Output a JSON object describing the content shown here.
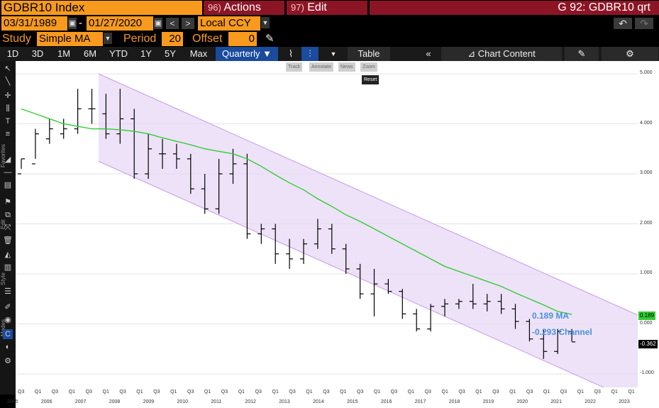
{
  "header": {
    "security": "GDBR10 Index",
    "actions_label": "Actions",
    "actions_num": "96)",
    "edit_label": "Edit",
    "edit_num": "97)",
    "title": "G 92: GDBR10 qrt"
  },
  "range": {
    "start": "03/31/1989",
    "sep": "-",
    "end": "01/27/2020",
    "currency": "Local CCY"
  },
  "study": {
    "label": "Study",
    "value": "Simple MA",
    "period_label": "Period",
    "period": "20",
    "offset_label": "Offset",
    "offset": "0"
  },
  "tabs": [
    "1D",
    "3D",
    "1M",
    "6M",
    "YTD",
    "1Y",
    "5Y",
    "Max"
  ],
  "frequency": "Quarterly ▼",
  "table_label": "Table",
  "chart_content_label": "Chart Content",
  "mini_tools": [
    "Track",
    "Annotate",
    "News",
    "Zoom"
  ],
  "reset_label": "Reset",
  "side_labels": [
    "Favorites",
    "Edit",
    "Style",
    "Modes"
  ],
  "colors": {
    "ma": "#33cc33",
    "channel_fill": "#e6d6f5",
    "channel_line": "#c79ae6",
    "annotation": "#4a90d9",
    "badge_ma": "#33cc33",
    "badge_last": "#000000"
  },
  "chart_data": {
    "type": "line",
    "ylim": [
      -1.3,
      5.1
    ],
    "y_ticks": [
      "5.000",
      "4.000",
      "3.000",
      "2.000",
      "1.000",
      "0.000",
      "-1.000"
    ],
    "x_quarters": [
      "Q3",
      "Q1",
      "Q3",
      "Q1",
      "Q3",
      "Q1",
      "Q3",
      "Q1",
      "Q3",
      "Q1",
      "Q3",
      "Q1",
      "Q3",
      "Q1",
      "Q3",
      "Q1",
      "Q3",
      "Q1",
      "Q3",
      "Q1",
      "Q3",
      "Q1",
      "Q3",
      "Q1",
      "Q3",
      "Q1",
      "Q3",
      "Q1",
      "Q3",
      "Q1",
      "Q3",
      "Q1",
      "Q3",
      "Q1",
      "Q3",
      "Q1",
      "Q1"
    ],
    "x_years": [
      "2005",
      "2006",
      "2007",
      "2008",
      "2009",
      "2010",
      "2011",
      "2012",
      "2013",
      "2014",
      "2015",
      "2016",
      "2017",
      "2018",
      "2019",
      "2020",
      "2021",
      "2022",
      "2023"
    ],
    "bars": [
      [
        3.0,
        3.3,
        3.1,
        3.3
      ],
      [
        3.2,
        3.9,
        3.3,
        3.8
      ],
      [
        3.7,
        4.1,
        3.6,
        3.9
      ],
      [
        3.8,
        4.1,
        3.7,
        3.9
      ],
      [
        3.9,
        4.7,
        3.8,
        4.3
      ],
      [
        4.3,
        4.7,
        4.0,
        4.3
      ],
      [
        4.2,
        4.6,
        3.7,
        3.8
      ],
      [
        3.8,
        4.7,
        3.6,
        4.1
      ],
      [
        4.1,
        4.3,
        2.9,
        3.0
      ],
      [
        3.0,
        3.8,
        2.9,
        3.5
      ],
      [
        3.4,
        3.7,
        3.1,
        3.4
      ],
      [
        3.4,
        3.6,
        3.1,
        3.3
      ],
      [
        3.3,
        3.4,
        2.6,
        2.7
      ],
      [
        2.7,
        3.0,
        2.2,
        2.3
      ],
      [
        2.3,
        3.3,
        2.2,
        3.0
      ],
      [
        3.0,
        3.5,
        2.8,
        3.2
      ],
      [
        3.2,
        3.4,
        1.7,
        1.8
      ],
      [
        1.8,
        2.0,
        1.6,
        1.9
      ],
      [
        1.9,
        2.0,
        1.2,
        1.4
      ],
      [
        1.4,
        1.7,
        1.1,
        1.3
      ],
      [
        1.3,
        1.7,
        1.2,
        1.6
      ],
      [
        1.6,
        2.1,
        1.5,
        1.9
      ],
      [
        1.9,
        2.0,
        1.4,
        1.5
      ],
      [
        1.5,
        1.6,
        1.0,
        1.1
      ],
      [
        1.1,
        1.2,
        0.5,
        0.6
      ],
      [
        0.6,
        1.1,
        0.15,
        0.8
      ],
      [
        0.8,
        0.9,
        0.6,
        0.65
      ],
      [
        0.65,
        0.7,
        0.1,
        0.2
      ],
      [
        0.2,
        0.3,
        -0.15,
        -0.1
      ],
      [
        -0.1,
        0.4,
        -0.15,
        0.35
      ],
      [
        0.35,
        0.5,
        0.15,
        0.4
      ],
      [
        0.4,
        0.5,
        0.3,
        0.45
      ],
      [
        0.45,
        0.8,
        0.3,
        0.4
      ],
      [
        0.4,
        0.6,
        0.25,
        0.45
      ],
      [
        0.45,
        0.6,
        0.2,
        0.3
      ],
      [
        0.3,
        0.4,
        -0.1,
        0.05
      ],
      [
        0.05,
        0.1,
        -0.35,
        -0.3
      ],
      [
        -0.3,
        -0.1,
        -0.7,
        -0.55
      ],
      [
        -0.55,
        -0.1,
        -0.6,
        -0.15
      ],
      [
        -0.15,
        -0.1,
        -0.35,
        -0.36
      ]
    ],
    "ma": [
      4.3,
      4.2,
      4.1,
      4.0,
      3.95,
      3.9,
      3.9,
      3.88,
      3.85,
      3.8,
      3.72,
      3.65,
      3.58,
      3.5,
      3.45,
      3.4,
      3.3,
      3.15,
      2.98,
      2.82,
      2.68,
      2.5,
      2.35,
      2.18,
      2.05,
      1.9,
      1.75,
      1.6,
      1.45,
      1.3,
      1.15,
      1.05,
      0.95,
      0.85,
      0.75,
      0.62,
      0.5,
      0.38,
      0.25,
      0.19
    ],
    "channel_upper": [
      5.0,
      0.2
    ],
    "channel_lower": [
      3.25,
      -1.55
    ],
    "ma_label": "0.189 MA",
    "channel_label": "-0.293 Channel",
    "badge_ma": "0.189",
    "badge_last": "-0.362"
  }
}
